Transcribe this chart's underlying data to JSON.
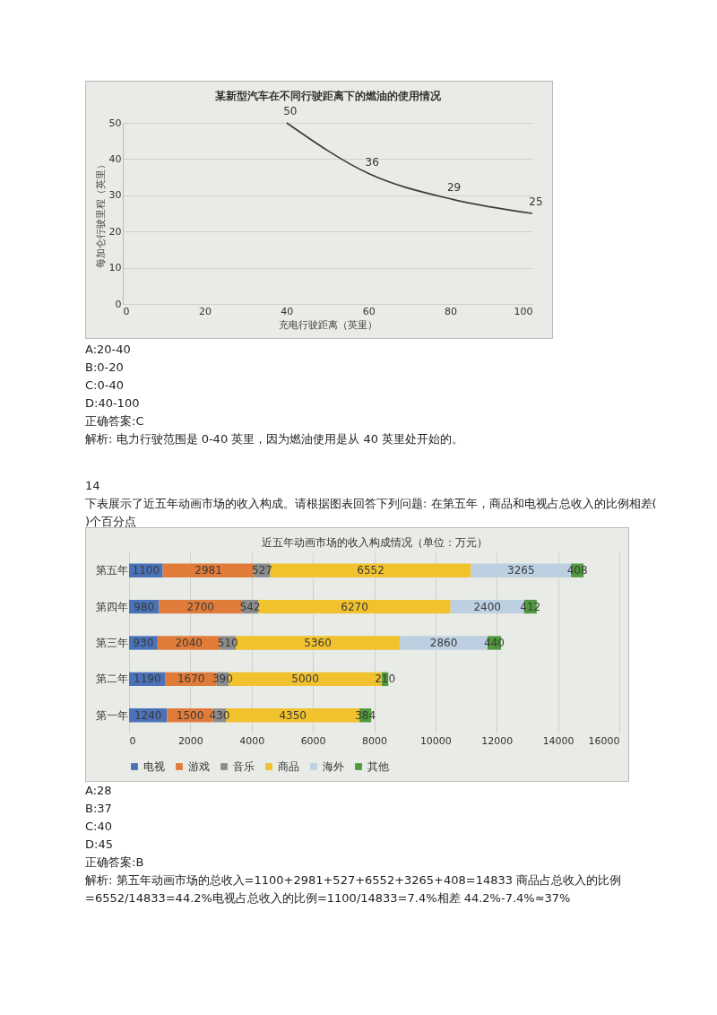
{
  "chart_data": [
    {
      "type": "line",
      "title": "某新型汽车在不同行驶距离下的燃油的使用情况",
      "xlabel": "充电行驶距离（英里）",
      "ylabel": "每加仑行驶里程（英里）",
      "x": [
        40,
        60,
        80,
        100
      ],
      "values": [
        50,
        36,
        29,
        25
      ],
      "color": "#3a3a3a",
      "xlim": [
        0,
        100
      ],
      "xticks": [
        0,
        20,
        40,
        60,
        80,
        100
      ],
      "ylim": [
        0,
        50
      ],
      "yticks": [
        0,
        10,
        20,
        30,
        40,
        50
      ],
      "grid": "y",
      "data_labels": true,
      "annotations": [
        "A:20-40",
        "B:0-20",
        "C:0-40",
        "D:40-100",
        "正确答案:C",
        "解析: 电力行驶范围是 0-40 英里，因为燃油使用是从 40 英里处开始的。",
        "14",
        "下表展示了近五年动画市场的收入构成。请根据图表回答下列问题: 在第五年，商品和电视占总收入的比例相差( )个百分点"
      ]
    },
    {
      "type": "bar",
      "title": "近五年动画市场的收入构成情况（单位：万元）",
      "orientation": "horizontal",
      "stacked": true,
      "categories": [
        "第五年",
        "第四年",
        "第三年",
        "第二年",
        "第一年"
      ],
      "series": [
        {
          "name": "电视",
          "color": "#4a72b8",
          "values": [
            1100,
            980,
            930,
            1190,
            1240
          ]
        },
        {
          "name": "游戏",
          "color": "#e07b39",
          "values": [
            2981,
            2700,
            2040,
            1670,
            1500
          ]
        },
        {
          "name": "音乐",
          "color": "#8c8c8c",
          "values": [
            527,
            542,
            510,
            390,
            430
          ]
        },
        {
          "name": "商品",
          "color": "#f2c12e",
          "values": [
            6552,
            6270,
            5360,
            5000,
            4350
          ]
        },
        {
          "name": "海外",
          "color": "#bcd0e2",
          "values": [
            3265,
            2400,
            2860,
            null,
            null
          ]
        },
        {
          "name": "其他",
          "color": "#4f9a3c",
          "values": [
            408,
            412,
            440,
            210,
            384
          ]
        }
      ],
      "xlim": [
        0,
        16000
      ],
      "xticks": [
        0,
        2000,
        4000,
        6000,
        8000,
        10000,
        12000,
        14000,
        16000
      ],
      "grid": "x",
      "legend": "bottom",
      "data_labels": true,
      "annotations": [
        "A:28",
        "B:37",
        "C:40",
        "D:45",
        "正确答案:B",
        "解析: 第五年动画市场的总收入=1100+2981+527+6552+3265+408=14833 商品占总收入的比例=6552/14833=44.2%电视占总收入的比例=1100/14833=7.4%相差 44.2%-7.4%≈37%"
      ]
    }
  ]
}
